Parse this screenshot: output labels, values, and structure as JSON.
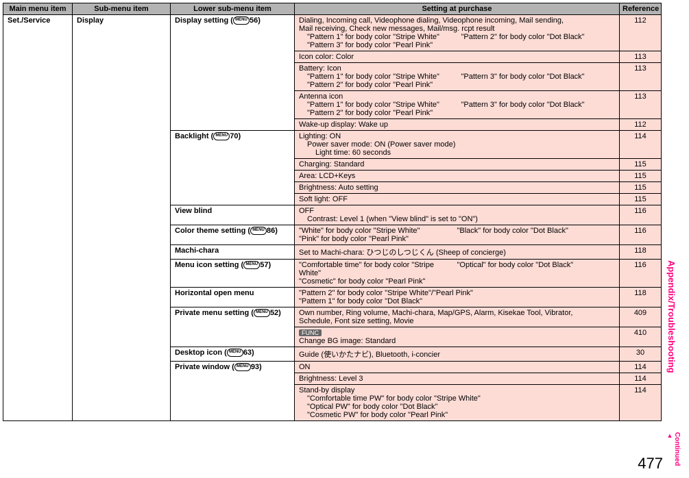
{
  "palette": {
    "header_bg": "#b3b3b3",
    "cell_bg": "#fddcd6",
    "page_bg": "#ffffff",
    "border": "#000000",
    "pink": "#ff0080",
    "func_bg": "#666666",
    "func_fg": "#ffffff"
  },
  "header": {
    "main": "Main menu item",
    "sub": "Sub-menu item",
    "lower": "Lower sub-menu item",
    "setting": "Setting at purchase",
    "ref": "Reference"
  },
  "main_item": "Set./Service",
  "sub_item": "Display",
  "rows": [
    {
      "lower": "Display setting",
      "icon": "56",
      "settings": [
        {
          "detail": "Dialing, Incoming call, Videophone dialing, Videophone incoming, Mail sending,",
          "detail2": "Mail receiving, Check new messages, Mail/msg. rcpt result",
          "sub": [
            {
              "a": "\"Pattern 1\" for body color \"Stripe White\"",
              "b": "\"Pattern 2\" for body color \"Dot Black\""
            },
            {
              "a": "\"Pattern 3\" for body color \"Pearl Pink\"",
              "b": ""
            }
          ],
          "ref": "112"
        },
        {
          "detail": "Icon color: Color",
          "ref": "113"
        },
        {
          "detail": "Battery: Icon",
          "sub": [
            {
              "a": "\"Pattern 1\" for body color \"Stripe White\"",
              "b": "\"Pattern 3\" for body color \"Dot Black\""
            },
            {
              "a": "\"Pattern 2\" for body color \"Pearl Pink\"",
              "b": ""
            }
          ],
          "ref": "113"
        },
        {
          "detail": "Antenna icon",
          "sub": [
            {
              "a": "\"Pattern 1\" for body color \"Stripe White\"",
              "b": "\"Pattern 3\" for body color \"Dot Black\""
            },
            {
              "a": "\"Pattern 2\" for body color \"Pearl Pink\"",
              "b": ""
            }
          ],
          "ref": "113"
        },
        {
          "detail": "Wake-up display: Wake up",
          "ref": "112"
        }
      ]
    },
    {
      "lower": "Backlight",
      "icon": "70",
      "settings": [
        {
          "detail": "Lighting: ON",
          "sub_plain": [
            "Power saver mode: ON (Power saver mode)",
            "Light time: 60 seconds"
          ],
          "ref": "114"
        },
        {
          "detail": "Charging: Standard",
          "ref": "115"
        },
        {
          "detail": "Area: LCD+Keys",
          "ref": "115"
        },
        {
          "detail": "Brightness: Auto setting",
          "ref": "115"
        },
        {
          "detail": "Soft light: OFF",
          "ref": "115"
        }
      ]
    },
    {
      "lower": "View blind",
      "settings": [
        {
          "detail": "OFF",
          "sub_plain": [
            "Contrast: Level 1 (when \"View blind\" is set to \"ON\")"
          ],
          "ref": "116"
        }
      ]
    },
    {
      "lower": "Color theme setting",
      "icon": "86",
      "settings": [
        {
          "detail": "\"White\" for body color \"Stripe White\"",
          "col_b": "\"Black\" for body color \"Dot Black\"",
          "detail2": "\"Pink\" for body color \"Pearl Pink\"",
          "ref": "116"
        }
      ]
    },
    {
      "lower": "Machi-chara",
      "settings": [
        {
          "detail": "Set to Machi-chara: ひつじのしつじくん (Sheep of concierge)",
          "ref": "118"
        }
      ]
    },
    {
      "lower": "Menu icon setting",
      "icon": "57",
      "settings": [
        {
          "detail": "\"Comfortable time\" for body color \"Stripe White\"",
          "col_b": "\"Optical\" for body color \"Dot Black\"",
          "detail2": "\"Cosmetic\" for body color \"Pearl Pink\"",
          "ref": "116"
        }
      ]
    },
    {
      "lower": "Horizontal open menu",
      "settings": [
        {
          "detail": "\"Pattern 2\" for body color \"Stripe White\"/\"Pearl Pink\"",
          "detail2": "\"Pattern 1\" for body color \"Dot Black\"",
          "ref": "118"
        }
      ]
    },
    {
      "lower": "Private menu setting",
      "icon": "52",
      "settings": [
        {
          "detail": "Own number, Ring volume, Machi-chara, Map/GPS, Alarm, Kisekae Tool, Vibrator,",
          "detail2": "Schedule, Font size setting, Movie",
          "ref": "409"
        },
        {
          "func": true,
          "detail": "Change BG image: Standard",
          "ref": "410"
        }
      ]
    },
    {
      "lower": "Desktop icon",
      "icon": "63",
      "settings": [
        {
          "detail": "Guide (使いかたナビ), Bluetooth, i-concier",
          "ref": "30"
        }
      ]
    },
    {
      "lower": "Private window",
      "icon": "93",
      "settings": [
        {
          "detail": "ON",
          "ref": "114"
        },
        {
          "detail": "Brightness: Level 3",
          "ref": "114"
        },
        {
          "detail": "Stand-by display",
          "sub_plain": [
            "\"Comfortable time PW\" for body color \"Stripe White\"",
            "\"Optical PW\" for body color \"Dot Black\"",
            "\"Cosmetic PW\" for body color \"Pearl Pink\""
          ],
          "ref": "114"
        }
      ]
    }
  ],
  "side_label": "Appendix/Troubleshooting",
  "continued_label": "Continued",
  "page_number": "477"
}
